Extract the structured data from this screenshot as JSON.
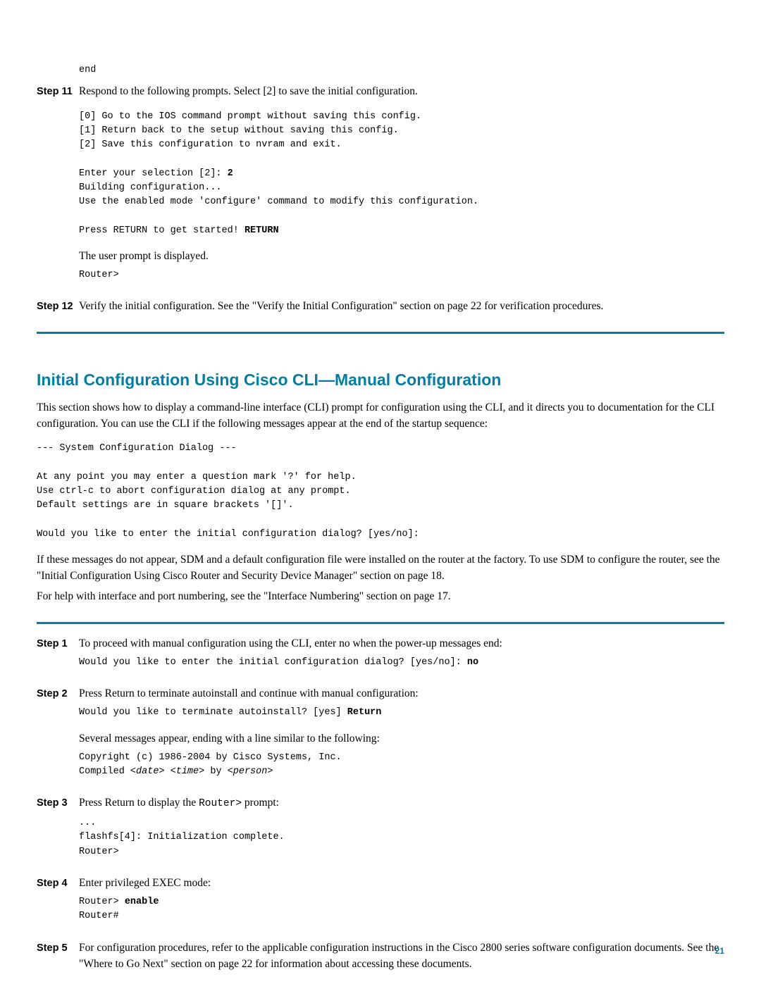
{
  "colors": {
    "accent": "#007fa3",
    "text": "#000000",
    "background": "#ffffff"
  },
  "fonts": {
    "body": "Georgia, Times New Roman, serif",
    "heading": "Arial, Helvetica, sans-serif",
    "mono": "Courier New, Courier, monospace",
    "body_size": 15.5,
    "mono_size": 13.5,
    "heading_size": 23,
    "step_label_size": 14.5
  },
  "top": {
    "code_end": "end",
    "step11": {
      "label": "Step 11",
      "text": "Respond to the following prompts. Select [2] to save the initial configuration.",
      "block1": "[0] Go to the IOS command prompt without saving this config.\n[1] Return back to the setup without saving this config.\n[2] Save this configuration to nvram and exit.\n\nEnter your selection [2]: ",
      "b2": "2",
      "block2": "\nBuilding configuration...\nUse the enabled mode 'configure' command to modify this configuration.\n\nPress RETURN to get started! ",
      "b_return": "RETURN",
      "after": "The user prompt is displayed.",
      "prompt": "Router>"
    },
    "step12": {
      "label": "Step 12",
      "text": "Verify the initial configuration. See the \"Verify the Initial Configuration\" section on page 22 for verification procedures."
    }
  },
  "section": {
    "heading": "Initial Configuration Using Cisco CLI—Manual Configuration",
    "para1": "This section shows how to display a command-line interface (CLI) prompt for configuration using the CLI, and it directs you to documentation for the CLI configuration. You can use the CLI if the following messages appear at the end of the startup sequence:",
    "code1": "--- System Configuration Dialog ---\n\nAt any point you may enter a question mark '?' for help.\nUse ctrl-c to abort configuration dialog at any prompt.\nDefault settings are in square brackets '[]'.\n\nWould you like to enter the initial configuration dialog? [yes/no]:",
    "para2": "If these messages do not appear, SDM and a default configuration file were installed on the router at the factory. To use SDM to configure the router, see the \"Initial Configuration Using Cisco Router and Security Device Manager\" section on page 18.",
    "para3": "For help with interface and port numbering, see the \"Interface Numbering\" section on page 17.",
    "step1": {
      "label": "Step 1",
      "text": "To proceed with manual configuration using the CLI, enter no when the power-up messages end:",
      "code_a": "Would you like to enter the initial configuration dialog? [yes/no]: ",
      "code_b": "no"
    },
    "step2": {
      "label": "Step 2",
      "text": "Press Return to terminate autoinstall and continue with manual configuration:",
      "code_a": "Would you like to terminate autoinstall? [yes] ",
      "code_b": "Return",
      "after": "Several messages appear, ending with a line similar to the following:",
      "code2_a": "Copyright (c) 1986-2004 by Cisco Systems, Inc.\nCompiled ",
      "code2_b": "<date> <time>",
      "code2_c": " by ",
      "code2_d": "<person>"
    },
    "step3": {
      "label": "Step 3",
      "text_a": "Press Return to display the ",
      "text_b": "Router>",
      "text_c": " prompt:",
      "code": "...\nflashfs[4]: Initialization complete.\nRouter>"
    },
    "step4": {
      "label": "Step 4",
      "text": "Enter privileged EXEC mode:",
      "code_a": "Router> ",
      "code_b": "enable",
      "code_c": "\nRouter#"
    },
    "step5": {
      "label": "Step 5",
      "text": "For configuration procedures, refer to the applicable configuration instructions in the Cisco 2800 series software configuration documents. See the \"Where to Go Next\" section on page 22 for information about accessing these documents."
    }
  },
  "page_number": "21"
}
